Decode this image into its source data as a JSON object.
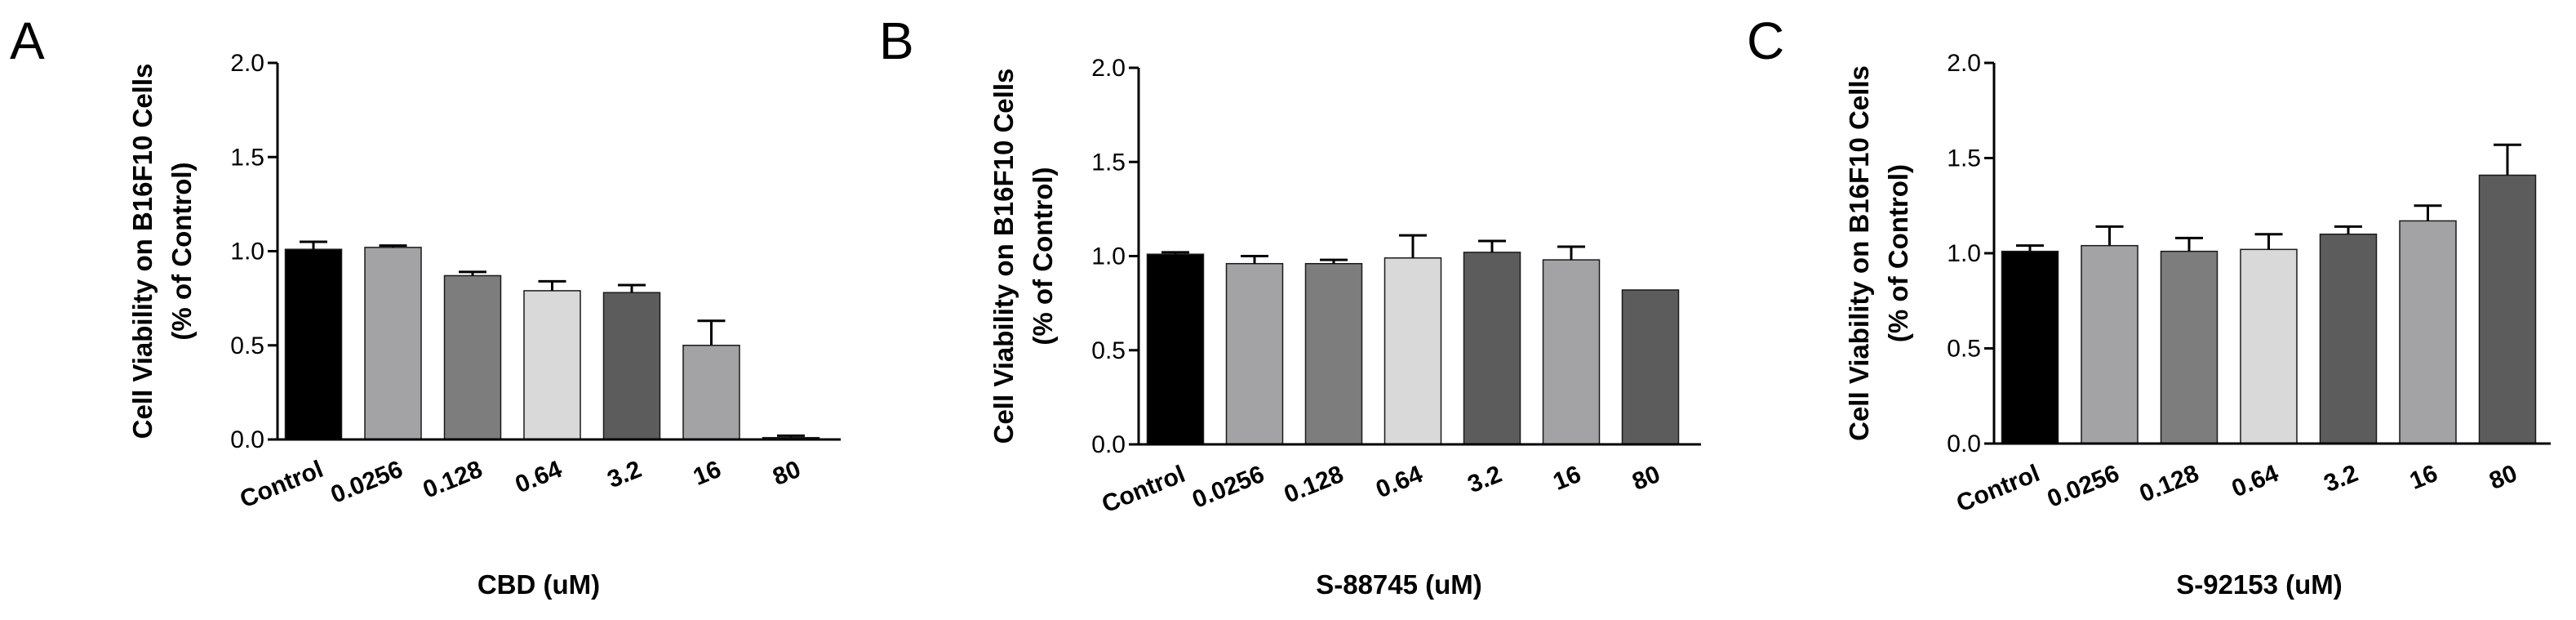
{
  "figure": {
    "panels": [
      "A",
      "B",
      "C"
    ]
  },
  "chart_data": [
    {
      "type": "bar",
      "panel_label": "A",
      "title": "",
      "categories": [
        "Control",
        "0.0256",
        "0.128",
        "0.64",
        "3.2",
        "16",
        "80"
      ],
      "values": [
        1.01,
        1.02,
        0.87,
        0.79,
        0.78,
        0.5,
        0.01
      ],
      "errors": [
        0.04,
        0.01,
        0.02,
        0.05,
        0.04,
        0.13,
        0.01
      ],
      "colors": [
        "#000000",
        "#a3a3a6",
        "#7d7d7d",
        "#d9d9d9",
        "#5c5c5c",
        "#a3a3a6",
        "#5c5c5c"
      ],
      "xlabel": "CBD (uM)",
      "ylabel_line1": "Cell Viability on B16F10 Cells",
      "ylabel_line2": "(% of Control)",
      "ylim": [
        0,
        2.0
      ],
      "yticks": [
        "0.0",
        "0.5",
        "1.0",
        "1.5",
        "2.0"
      ],
      "grid": false
    },
    {
      "type": "bar",
      "panel_label": "B",
      "title": "",
      "categories": [
        "Control",
        "0.0256",
        "0.128",
        "0.64",
        "3.2",
        "16",
        "80"
      ],
      "values": [
        1.01,
        0.96,
        0.96,
        0.99,
        1.02,
        0.98,
        0.82
      ],
      "errors": [
        0.01,
        0.04,
        0.02,
        0.12,
        0.06,
        0.07,
        0.0
      ],
      "colors": [
        "#000000",
        "#a3a3a6",
        "#7d7d7d",
        "#d9d9d9",
        "#5c5c5c",
        "#a3a3a6",
        "#5c5c5c"
      ],
      "xlabel": "S-88745 (uM)",
      "ylabel_line1": "Cell Viability on B16F10 Cells",
      "ylabel_line2": "(% of Control)",
      "ylim": [
        0,
        2.0
      ],
      "yticks": [
        "0.0",
        "0.5",
        "1.0",
        "1.5",
        "2.0"
      ],
      "grid": false
    },
    {
      "type": "bar",
      "panel_label": "C",
      "title": "",
      "categories": [
        "Control",
        "0.0256",
        "0.128",
        "0.64",
        "3.2",
        "16",
        "80"
      ],
      "values": [
        1.01,
        1.04,
        1.01,
        1.02,
        1.1,
        1.17,
        1.41
      ],
      "errors": [
        0.03,
        0.1,
        0.07,
        0.08,
        0.04,
        0.08,
        0.16
      ],
      "colors": [
        "#000000",
        "#a3a3a6",
        "#7d7d7d",
        "#d9d9d9",
        "#5c5c5c",
        "#a3a3a6",
        "#5c5c5c"
      ],
      "xlabel": "S-92153 (uM)",
      "ylabel_line1": "Cell Viability on B16F10 Cells",
      "ylabel_line2": "(% of Control)",
      "ylim": [
        0,
        2.0
      ],
      "yticks": [
        "0.0",
        "0.5",
        "1.0",
        "1.5",
        "2.0"
      ],
      "grid": false
    }
  ]
}
